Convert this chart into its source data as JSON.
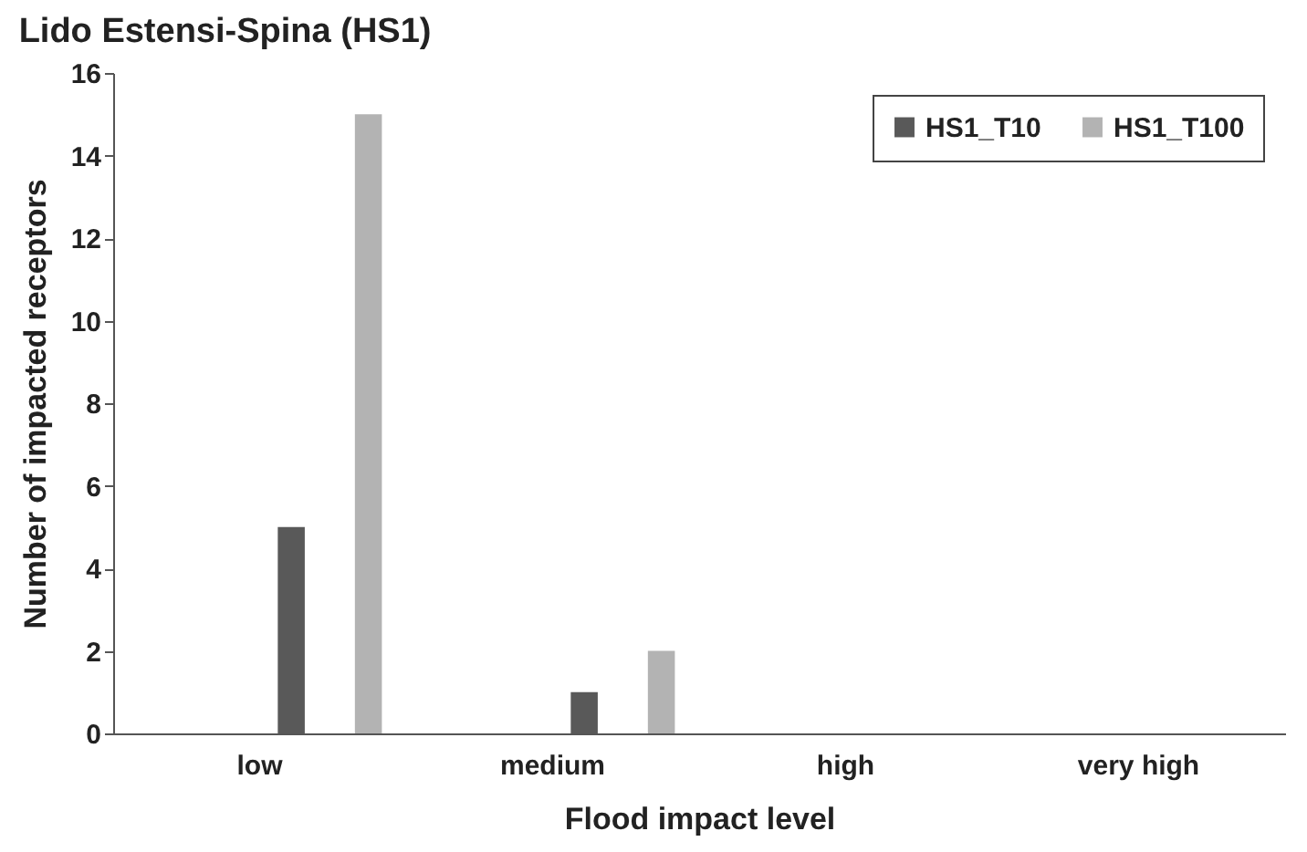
{
  "chart_data": {
    "type": "bar",
    "title": "Lido Estensi-Spina (HS1)",
    "xlabel": "Flood impact level",
    "ylabel": "Number of impacted receptors",
    "categories": [
      "low",
      "medium",
      "high",
      "very high"
    ],
    "series": [
      {
        "name": "HS1_T10",
        "color": "#595959",
        "values": [
          5,
          1,
          0,
          0
        ]
      },
      {
        "name": "HS1_T100",
        "color": "#b3b3b3",
        "values": [
          15,
          2,
          0,
          0
        ]
      }
    ],
    "ylim": [
      0,
      16
    ],
    "yticks": [
      0,
      2,
      4,
      6,
      8,
      10,
      12,
      14,
      16
    ],
    "legend": "top right"
  }
}
